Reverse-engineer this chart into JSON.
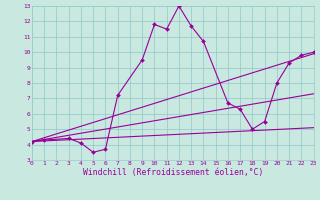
{
  "bg_color": "#c8e8e0",
  "grid_color": "#99cccc",
  "line_color": "#990099",
  "xlabel": "Windchill (Refroidissement éolien,°C)",
  "xlim": [
    0,
    23
  ],
  "ylim": [
    3,
    13
  ],
  "xticks": [
    0,
    1,
    2,
    3,
    4,
    5,
    6,
    7,
    8,
    9,
    10,
    11,
    12,
    13,
    14,
    15,
    16,
    17,
    18,
    19,
    20,
    21,
    22,
    23
  ],
  "yticks": [
    3,
    4,
    5,
    6,
    7,
    8,
    9,
    10,
    11,
    12,
    13
  ],
  "line1_x": [
    0,
    1,
    3,
    4,
    5,
    6,
    7,
    9,
    10,
    11,
    12,
    13,
    14,
    16,
    17,
    18,
    19,
    20,
    21,
    22,
    23
  ],
  "line1_y": [
    4.2,
    4.3,
    4.4,
    4.1,
    3.5,
    3.7,
    7.2,
    9.5,
    11.8,
    11.5,
    13.0,
    11.7,
    10.7,
    6.7,
    6.3,
    5.0,
    5.5,
    8.0,
    9.3,
    9.8,
    10.0
  ],
  "line2_x": [
    0,
    23
  ],
  "line2_y": [
    4.2,
    5.1
  ],
  "line3_x": [
    0,
    23
  ],
  "line3_y": [
    4.2,
    7.3
  ],
  "line4_x": [
    0,
    23
  ],
  "line4_y": [
    4.2,
    9.9
  ],
  "tick_fontsize": 4.5,
  "label_fontsize": 5.8,
  "figwidth": 3.2,
  "figheight": 2.0,
  "dpi": 100
}
